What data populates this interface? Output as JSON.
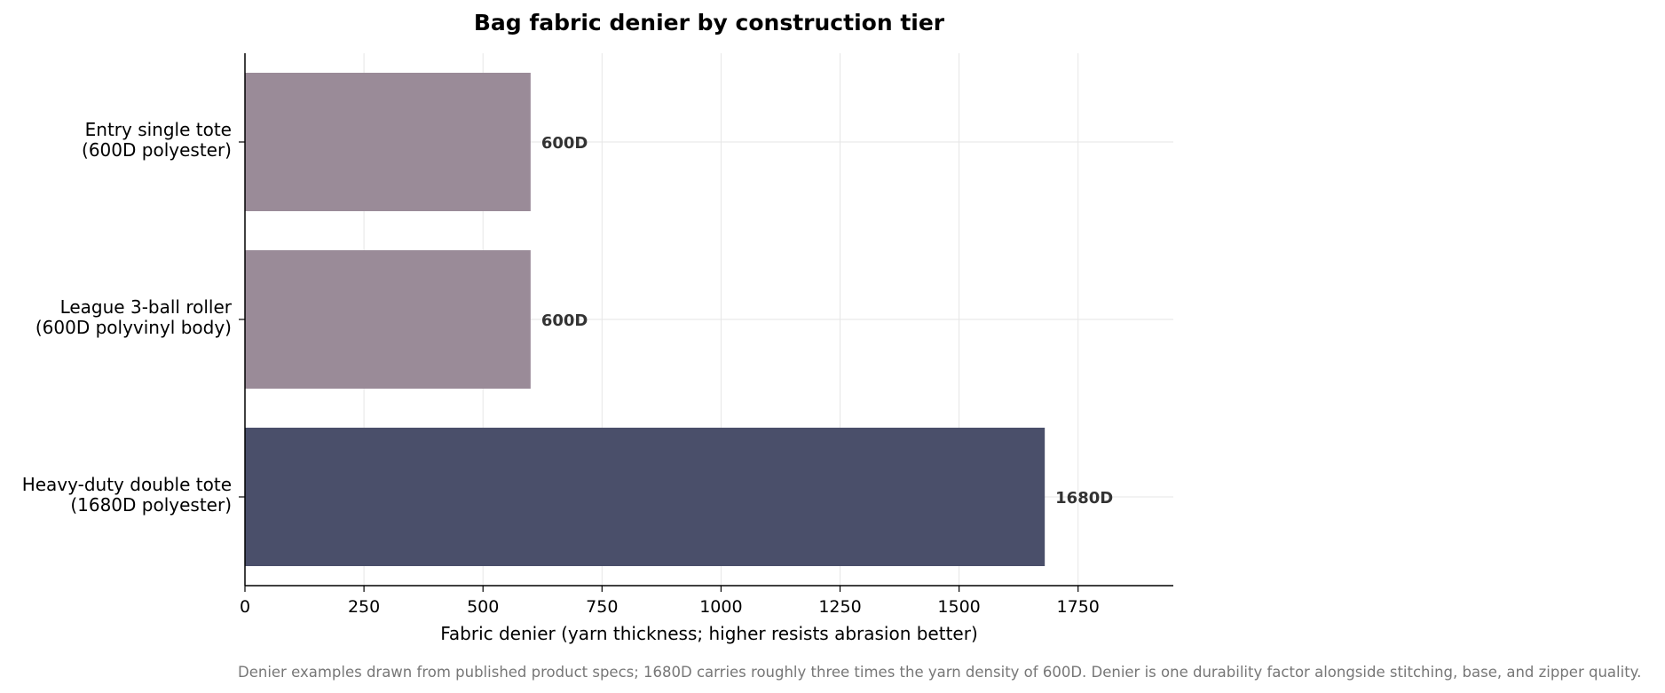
{
  "chart_data": {
    "type": "bar",
    "orientation": "horizontal",
    "title": "Bag fabric denier by construction tier",
    "xlabel": "Fabric denier (yarn thickness; higher resists abrasion better)",
    "ylabel": "",
    "footnote": "Denier examples drawn from published product specs; 1680D carries roughly three times the yarn density of 600D. Denier is one durability factor alongside stitching, base, and zipper quality.",
    "xlim": [
      0,
      1950
    ],
    "xticks": [
      0,
      250,
      500,
      750,
      1000,
      1250,
      1500,
      1750
    ],
    "grid": true,
    "categories": [
      [
        "Entry single tote",
        "(600D polyester)"
      ],
      [
        "League 3-ball roller",
        "(600D polyvinyl body)"
      ],
      [
        "Heavy-duty double tote",
        "(1680D polyester)"
      ]
    ],
    "values": [
      600,
      600,
      1680
    ],
    "value_labels": [
      "600D",
      "600D",
      "1680D"
    ],
    "bar_colors": [
      "#9a8b98",
      "#9a8b98",
      "#4a4f6a"
    ]
  },
  "colors": {
    "grid": "#e6e6e6",
    "axis": "#000000",
    "value_label": "#333333",
    "footnote": "#777777"
  }
}
